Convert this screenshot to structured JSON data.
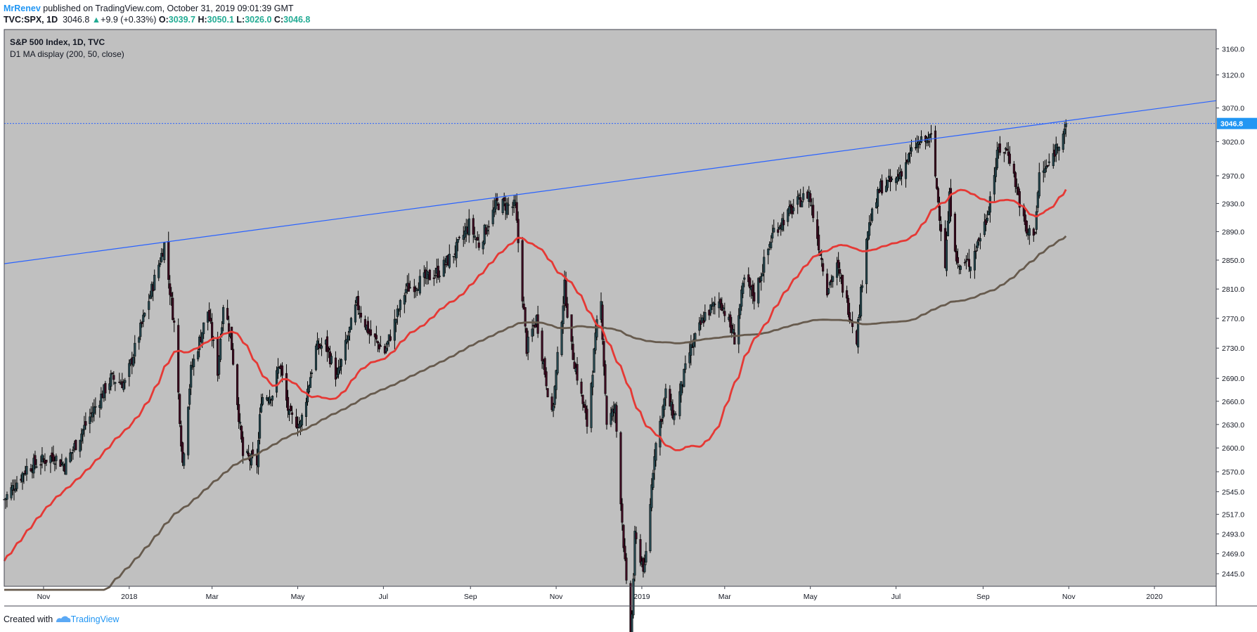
{
  "header": {
    "author": "MrRenev",
    "published": " published on TradingView.com, October 31, 2019 09:01:39 GMT",
    "symbol": "TVC:SPX, 1D",
    "last": "3046.8",
    "arrow": "▲",
    "change": "+9.9 (+0.33%)",
    "o_label": "O:",
    "o_value": "3039.7",
    "h_label": "H:",
    "h_value": "3050.1",
    "l_label": "L:",
    "l_value": "3026.0",
    "c_label": "C:",
    "c_value": "3046.8"
  },
  "footer": {
    "created_with": "Created with",
    "brand": "TradingView"
  },
  "colors": {
    "plot_bg": "#c0c0c0",
    "up": "#25464e",
    "down": "#3c0a20",
    "ma50": "#e53935",
    "ma200": "#675b4e",
    "trendline": "#2962ff",
    "price_tag": "#2196f3"
  },
  "chart_data": {
    "type": "candlestick",
    "title": "S&P 500 Index, 1D, TVC",
    "subtitle": "D1 MA display (200, 50, close)",
    "y_ticks": [
      3160.0,
      3120.0,
      3070.0,
      3020.0,
      2970.0,
      2930.0,
      2890.0,
      2850.0,
      2810.0,
      2770.0,
      2730.0,
      2690.0,
      2660.0,
      2630.0,
      2600.0,
      2570.0,
      2545.0,
      2517.0,
      2493.0,
      2469.0,
      2445.0
    ],
    "x_ticks": [
      {
        "label": "Nov",
        "date": "2017-11-01"
      },
      {
        "label": "2018",
        "date": "2018-01-01"
      },
      {
        "label": "Mar",
        "date": "2018-03-01"
      },
      {
        "label": "May",
        "date": "2018-05-01"
      },
      {
        "label": "Jul",
        "date": "2018-07-01"
      },
      {
        "label": "Sep",
        "date": "2018-09-01"
      },
      {
        "label": "Nov",
        "date": "2018-11-01"
      },
      {
        "label": "2019",
        "date": "2019-01-01"
      },
      {
        "label": "Mar",
        "date": "2019-03-01"
      },
      {
        "label": "May",
        "date": "2019-05-01"
      },
      {
        "label": "Jul",
        "date": "2019-07-01"
      },
      {
        "label": "Sep",
        "date": "2019-09-01"
      },
      {
        "label": "Nov",
        "date": "2019-11-01"
      },
      {
        "label": "2020",
        "date": "2020-01-01"
      }
    ],
    "x_range": [
      "2017-10-04",
      "2020-02-14"
    ],
    "last_price": 3046.8,
    "log_scale": true,
    "anchors": [
      [
        "2017-10-04",
        2535
      ],
      [
        "2017-10-20",
        2575
      ],
      [
        "2017-11-08",
        2590
      ],
      [
        "2017-11-16",
        2578
      ],
      [
        "2017-12-04",
        2640
      ],
      [
        "2017-12-19",
        2690
      ],
      [
        "2017-12-29",
        2683
      ],
      [
        "2018-01-12",
        2775
      ],
      [
        "2018-01-26",
        2872
      ],
      [
        "2018-02-02",
        2762
      ],
      [
        "2018-02-08",
        2581
      ],
      [
        "2018-02-14",
        2700
      ],
      [
        "2018-02-26",
        2780
      ],
      [
        "2018-03-05",
        2700
      ],
      [
        "2018-03-09",
        2790
      ],
      [
        "2018-03-14",
        2750
      ],
      [
        "2018-03-23",
        2590
      ],
      [
        "2018-04-02",
        2581
      ],
      [
        "2018-04-05",
        2665
      ],
      [
        "2018-04-13",
        2670
      ],
      [
        "2018-04-18",
        2710
      ],
      [
        "2018-04-25",
        2640
      ],
      [
        "2018-05-03",
        2630
      ],
      [
        "2018-05-14",
        2730
      ],
      [
        "2018-05-21",
        2735
      ],
      [
        "2018-05-29",
        2690
      ],
      [
        "2018-06-12",
        2790
      ],
      [
        "2018-06-21",
        2750
      ],
      [
        "2018-07-02",
        2725
      ],
      [
        "2018-07-17",
        2810
      ],
      [
        "2018-07-27",
        2820
      ],
      [
        "2018-08-10",
        2835
      ],
      [
        "2018-08-21",
        2862
      ],
      [
        "2018-08-31",
        2900
      ],
      [
        "2018-09-07",
        2872
      ],
      [
        "2018-09-20",
        2930
      ],
      [
        "2018-10-03",
        2925
      ],
      [
        "2018-10-11",
        2730
      ],
      [
        "2018-10-18",
        2770
      ],
      [
        "2018-10-29",
        2640
      ],
      [
        "2018-11-07",
        2813
      ],
      [
        "2018-11-12",
        2730
      ],
      [
        "2018-11-23",
        2630
      ],
      [
        "2018-11-30",
        2760
      ],
      [
        "2018-12-03",
        2790
      ],
      [
        "2018-12-07",
        2633
      ],
      [
        "2018-12-13",
        2650
      ],
      [
        "2018-12-24",
        2351
      ],
      [
        "2018-12-27",
        2488
      ],
      [
        "2019-01-03",
        2448
      ],
      [
        "2019-01-10",
        2596
      ],
      [
        "2019-01-18",
        2670
      ],
      [
        "2019-01-24",
        2640
      ],
      [
        "2019-02-04",
        2724
      ],
      [
        "2019-02-15",
        2775
      ],
      [
        "2019-02-26",
        2795
      ],
      [
        "2019-03-08",
        2743
      ],
      [
        "2019-03-15",
        2822
      ],
      [
        "2019-03-22",
        2800
      ],
      [
        "2019-04-05",
        2892
      ],
      [
        "2019-04-23",
        2933
      ],
      [
        "2019-04-30",
        2945
      ],
      [
        "2019-05-13",
        2811
      ],
      [
        "2019-05-20",
        2840
      ],
      [
        "2019-06-03",
        2744
      ],
      [
        "2019-06-10",
        2886
      ],
      [
        "2019-06-20",
        2954
      ],
      [
        "2019-07-01",
        2964
      ],
      [
        "2019-07-15",
        3014
      ],
      [
        "2019-07-26",
        3025
      ],
      [
        "2019-08-05",
        2844
      ],
      [
        "2019-08-08",
        2938
      ],
      [
        "2019-08-14",
        2840
      ],
      [
        "2019-08-23",
        2847
      ],
      [
        "2019-09-03",
        2906
      ],
      [
        "2019-09-12",
        3009
      ],
      [
        "2019-09-19",
        3006
      ],
      [
        "2019-10-02",
        2887
      ],
      [
        "2019-10-08",
        2893
      ],
      [
        "2019-10-11",
        2970
      ],
      [
        "2019-10-18",
        2986
      ],
      [
        "2019-10-25",
        3022
      ],
      [
        "2019-10-30",
        3046.8
      ]
    ],
    "trendline": {
      "from": [
        "2017-10-04",
        2845
      ],
      "to": [
        "2020-02-14",
        3081
      ]
    }
  }
}
